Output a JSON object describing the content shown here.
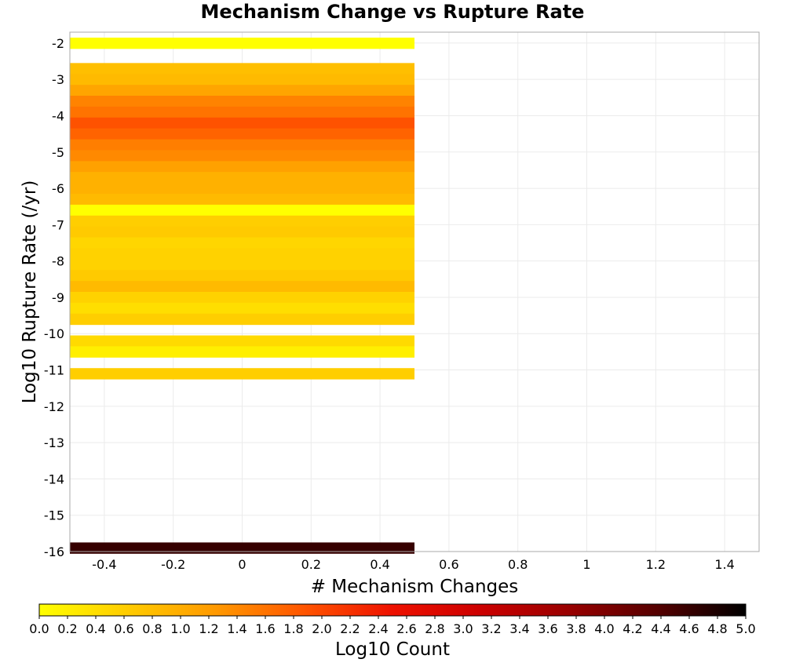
{
  "chart_data": {
    "type": "heatmap",
    "title": "Mechanism Change vs Rupture Rate",
    "xlabel": "# Mechanism Changes",
    "ylabel": "Log10 Rupture Rate (/yr)",
    "xlim": [
      -0.5,
      1.5
    ],
    "ylim": [
      -16,
      -1.7
    ],
    "x_ticks": [
      "-0.4",
      "-0.2",
      "0",
      "0.2",
      "0.4",
      "0.6",
      "0.8",
      "1",
      "1.2",
      "1.4"
    ],
    "y_ticks": [
      "-2",
      "-3",
      "-4",
      "-5",
      "-6",
      "-7",
      "-8",
      "-9",
      "-10",
      "-11",
      "-12",
      "-13",
      "-14",
      "-15",
      "-16"
    ],
    "grid": true,
    "colorbar": {
      "label": "Log10 Count",
      "range": [
        0,
        5
      ],
      "ticks": [
        "0.0",
        "0.2",
        "0.4",
        "0.6",
        "0.8",
        "1.0",
        "1.2",
        "1.4",
        "1.6",
        "1.8",
        "2.0",
        "2.2",
        "2.4",
        "2.6",
        "2.8",
        "3.0",
        "3.2",
        "3.4",
        "3.6",
        "3.8",
        "4.0",
        "4.2",
        "4.4",
        "4.6",
        "4.8",
        "5.0"
      ],
      "colors": [
        "#ffff00",
        "#ffcc00",
        "#ff9900",
        "#ff5500",
        "#ee1100",
        "#cc0000",
        "#990000",
        "#550000",
        "#000000"
      ]
    },
    "cells": [
      {
        "x": 0,
        "y": -2.0,
        "value": 0.0
      },
      {
        "x": 0,
        "y": -2.7,
        "value": 0.78
      },
      {
        "x": 0,
        "y": -3.0,
        "value": 0.85
      },
      {
        "x": 0,
        "y": -3.3,
        "value": 1.1
      },
      {
        "x": 0,
        "y": -3.6,
        "value": 1.45
      },
      {
        "x": 0,
        "y": -3.9,
        "value": 1.6
      },
      {
        "x": 0,
        "y": -4.2,
        "value": 1.9
      },
      {
        "x": 0,
        "y": -4.5,
        "value": 1.75
      },
      {
        "x": 0,
        "y": -4.8,
        "value": 1.5
      },
      {
        "x": 0,
        "y": -5.1,
        "value": 1.4
      },
      {
        "x": 0,
        "y": -5.4,
        "value": 1.15
      },
      {
        "x": 0,
        "y": -5.7,
        "value": 0.95
      },
      {
        "x": 0,
        "y": -6.0,
        "value": 0.95
      },
      {
        "x": 0,
        "y": -6.3,
        "value": 0.85
      },
      {
        "x": 0,
        "y": -6.6,
        "value": 0.0
      },
      {
        "x": 0,
        "y": -6.9,
        "value": 0.6
      },
      {
        "x": 0,
        "y": -7.2,
        "value": 0.65
      },
      {
        "x": 0,
        "y": -7.5,
        "value": 0.5
      },
      {
        "x": 0,
        "y": -7.8,
        "value": 0.55
      },
      {
        "x": 0,
        "y": -8.1,
        "value": 0.55
      },
      {
        "x": 0,
        "y": -8.4,
        "value": 0.65
      },
      {
        "x": 0,
        "y": -8.7,
        "value": 0.85
      },
      {
        "x": 0,
        "y": -9.0,
        "value": 0.55
      },
      {
        "x": 0,
        "y": -9.3,
        "value": 0.4
      },
      {
        "x": 0,
        "y": -9.6,
        "value": 0.6
      },
      {
        "x": 0,
        "y": -10.2,
        "value": 0.45
      },
      {
        "x": 0,
        "y": -10.5,
        "value": 0.2
      },
      {
        "x": 0,
        "y": -11.1,
        "value": 0.6
      },
      {
        "x": 0,
        "y": -15.9,
        "value": 4.6
      }
    ],
    "cell_height": 0.3,
    "cell_width": 1
  }
}
